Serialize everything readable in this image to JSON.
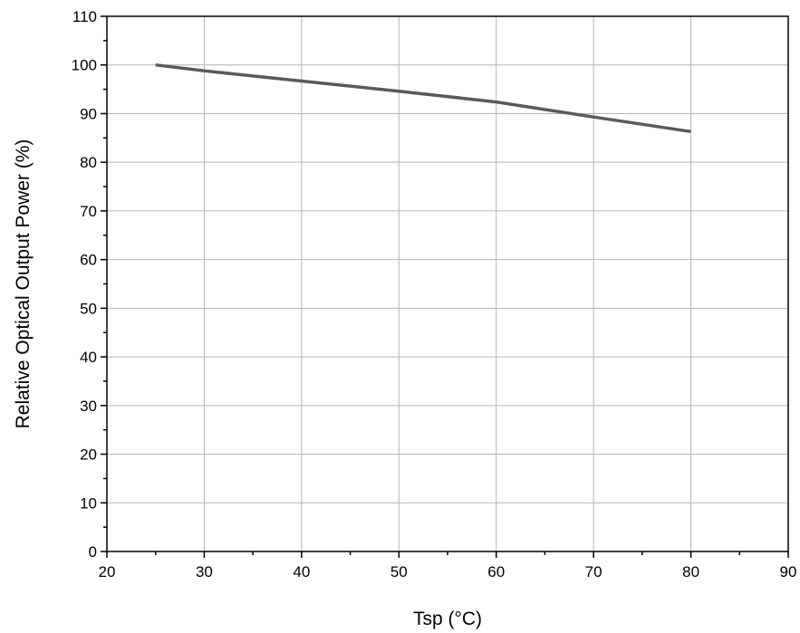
{
  "chart_data": {
    "type": "line",
    "xlabel": "Tsp (°C)",
    "ylabel": "Relative Optical Output Power (%)",
    "xlim": [
      20,
      90
    ],
    "ylim": [
      0,
      110
    ],
    "x_ticks": [
      20,
      30,
      40,
      50,
      60,
      70,
      80,
      90
    ],
    "y_ticks": [
      0,
      10,
      20,
      30,
      40,
      50,
      60,
      70,
      80,
      90,
      100,
      110
    ],
    "grid": true,
    "series": [
      {
        "color": "#5a5a5a",
        "x": [
          25,
          30,
          40,
          50,
          60,
          70,
          80
        ],
        "y": [
          100,
          98.8,
          96.7,
          94.6,
          92.4,
          89.3,
          86.3
        ]
      }
    ]
  }
}
